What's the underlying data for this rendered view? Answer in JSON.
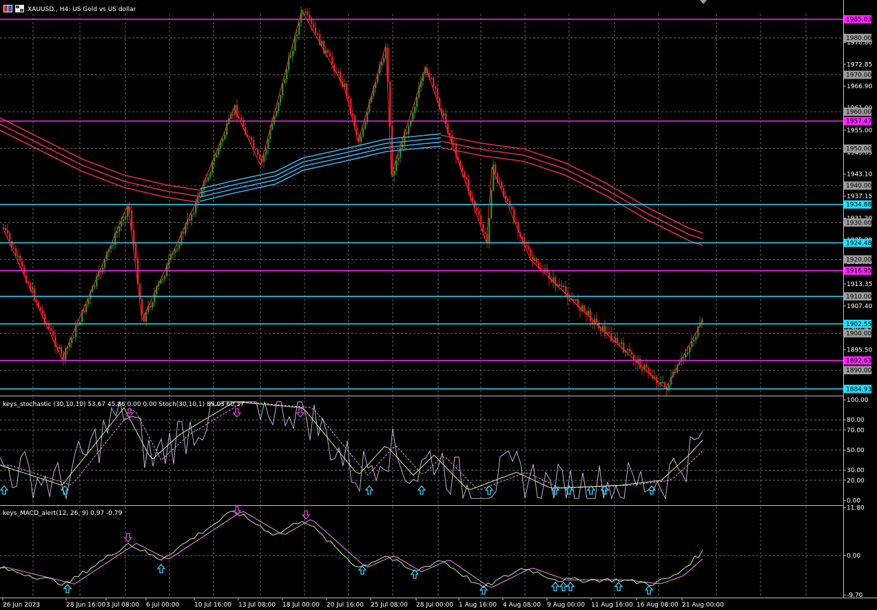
{
  "header": {
    "symbol": "XAUUSD.",
    "timeframe": "H4",
    "description": "US Gold vs US dollar",
    "title_text": "XAUUSD., H4:  US Gold vs US dollar"
  },
  "colors": {
    "background": "#000000",
    "grid": "#7f7f7f",
    "bull_candle": "#2e8b2e",
    "bear_candle": "#e0202a",
    "zigzag": "#ff2a2a",
    "ma_red": "#e0284a",
    "ma_blue": "#3aaee8",
    "resistance_line": "#ff22ff",
    "support_line": "#22e0ff",
    "stoch_main": "#c8f0a0",
    "stoch_signal": "#ff88ff",
    "stoch_raw": "#b4b4d0",
    "macd_main": "#b8f0a0",
    "macd_signal": "#ff88ff",
    "up_arrow": "#3ad0ff",
    "down_arrow": "#e040e0",
    "text": "#ffffff"
  },
  "price_axis": {
    "ticks": [
      "1978.80",
      "1972.85",
      "1966.90",
      "1961.00",
      "1955.00",
      "1949.05",
      "1943.10",
      "1937.15",
      "1931.20",
      "1925.30",
      "1919.35",
      "1913.35",
      "1907.40",
      "1901.45",
      "1895.50",
      "1889.55"
    ]
  },
  "price_labels": [
    {
      "value": "1985.03",
      "kind": "magenta"
    },
    {
      "value": "1980.00",
      "kind": "gray"
    },
    {
      "value": "1970.00",
      "kind": "gray"
    },
    {
      "value": "1960.00",
      "kind": "gray"
    },
    {
      "value": "1957.47",
      "kind": "magenta"
    },
    {
      "value": "1950.00",
      "kind": "gray"
    },
    {
      "value": "1940.00",
      "kind": "gray"
    },
    {
      "value": "1934.88",
      "kind": "cyan"
    },
    {
      "value": "1930.00",
      "kind": "gray"
    },
    {
      "value": "1924.48",
      "kind": "cyan"
    },
    {
      "value": "1920.00",
      "kind": "gray"
    },
    {
      "value": "1916.95",
      "kind": "magenta"
    },
    {
      "value": "1910.00",
      "kind": "gray"
    },
    {
      "value": "1902.55",
      "kind": "cyan"
    },
    {
      "value": "1900.00",
      "kind": "gray"
    },
    {
      "value": "1892.63",
      "kind": "magenta"
    },
    {
      "value": "1890.00",
      "kind": "gray"
    },
    {
      "value": "1884.93",
      "kind": "cyan"
    }
  ],
  "stochastic": {
    "title": "keys_stochastic (30,10,10) 53.67 45.86 0.00 0.00 Stoch(30,10,1) 89.03 60.37",
    "ticks": [
      "100.00",
      "80.00",
      "70.00",
      "50.00",
      "30.00",
      "20.00",
      "0.00"
    ]
  },
  "macd": {
    "title": "keys_MACD_alert(12, 26, 9) 0.97 -0.79",
    "ticks": [
      "11.80",
      "0.00",
      "-9.70"
    ]
  },
  "time_axis": [
    "26 Jun 2023",
    "28 Jun 16:00",
    "3 Jul 08:00",
    "6 Jul 00:00",
    "10 Jul 16:00",
    "13 Jul 08:00",
    "18 Jul 00:00",
    "20 Jul 16:00",
    "25 Jul 08:00",
    "28 Jul 00:00",
    "1 Aug 16:00",
    "4 Aug 08:00",
    "9 Aug 00:00",
    "11 Aug 16:00",
    "16 Aug 08:00",
    "21 Aug 00:00"
  ],
  "chart_data": {
    "type": "candlestick",
    "title": "XAUUSD., H4:  US Gold vs US dollar",
    "ylim": [
      1882.5,
      1990.5
    ],
    "zigzag": [
      {
        "x": "26 Jun 2023",
        "y": 1928.5
      },
      {
        "x": "28 Jun 16:00",
        "y": 1893.0
      },
      {
        "x": "3 Jul 08:00",
        "y": 1935.0
      },
      {
        "x": "6 Jul 00:00",
        "y": 1903.5
      },
      {
        "x": "10 Jul 16:00",
        "y": 1934.5
      },
      {
        "x": "13 Jul 08:00",
        "y": 1961.0
      },
      {
        "x": "13 Jul 20:00",
        "y": 1945.5
      },
      {
        "x": "18 Jul 04:00",
        "y": 1987.5
      },
      {
        "x": "20 Jul 16:00",
        "y": 1966.5
      },
      {
        "x": "25 Jul 08:00",
        "y": 1952.0
      },
      {
        "x": "27 Jul 12:00",
        "y": 1978.0
      },
      {
        "x": "28 Jul 00:00",
        "y": 1943.0
      },
      {
        "x": "31 Jul 12:00",
        "y": 1972.0
      },
      {
        "x": "2 Aug 16:00",
        "y": 1924.5
      },
      {
        "x": "3 Aug 12:00",
        "y": 1945.0
      },
      {
        "x": "8 Aug 12:00",
        "y": 1920.0
      },
      {
        "x": "14 Aug 12:00",
        "y": 1900.0
      },
      {
        "x": "17 Aug 08:00",
        "y": 1885.0
      },
      {
        "x": "21 Aug 16:00",
        "y": 1903.5
      }
    ],
    "horizontal_levels": [
      {
        "value": 1985.03,
        "kind": "resistance"
      },
      {
        "value": 1957.47,
        "kind": "resistance"
      },
      {
        "value": 1934.88,
        "kind": "support"
      },
      {
        "value": 1924.48,
        "kind": "support"
      },
      {
        "value": 1916.95,
        "kind": "resistance"
      },
      {
        "value": 1910.0,
        "kind": "support"
      },
      {
        "value": 1902.55,
        "kind": "support"
      },
      {
        "value": 1892.63,
        "kind": "resistance"
      },
      {
        "value": 1884.93,
        "kind": "support"
      }
    ],
    "stochastic_last": {
      "k": 53.67,
      "d": 45.86,
      "stoch_main": 89.03,
      "stoch_signal": 60.37
    },
    "macd_last": {
      "main": 0.97,
      "signal": -0.79
    }
  }
}
